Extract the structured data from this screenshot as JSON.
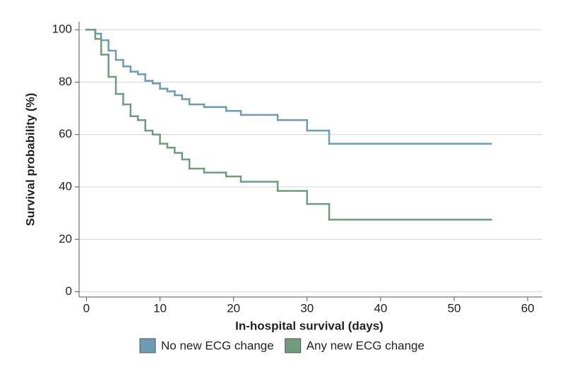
{
  "chart_data": {
    "type": "step",
    "xlabel": "In-hospital survival (days)",
    "ylabel": "Survival probability (%)",
    "xlim": [
      -1,
      62
    ],
    "ylim": [
      -2,
      103
    ],
    "xticks": [
      0,
      10,
      20,
      30,
      40,
      50,
      60
    ],
    "yticks": [
      0,
      20,
      40,
      60,
      80,
      100
    ],
    "grid": true,
    "legend": "bottom",
    "series": [
      {
        "name": "No new ECG change",
        "color": "#6b9db6",
        "x": [
          0,
          1.2,
          2,
          3,
          4,
          5,
          6,
          7,
          8,
          9,
          10,
          11,
          12,
          13,
          14,
          16,
          19,
          21,
          26,
          30,
          33,
          55
        ],
        "values": [
          100,
          98.5,
          96,
          92,
          88.5,
          86,
          84,
          83,
          80.5,
          79.5,
          77.5,
          76.5,
          75,
          73.5,
          71.5,
          70.5,
          69,
          67.5,
          65.5,
          61.5,
          56.5,
          56.5
        ]
      },
      {
        "name": "Any new ECG change",
        "color": "#6e9c7d",
        "x": [
          0,
          1.2,
          2,
          3,
          4,
          5,
          6,
          7,
          8,
          9,
          10,
          11,
          12,
          13,
          14,
          16,
          19,
          21,
          26,
          30,
          33,
          55
        ],
        "values": [
          100,
          96.5,
          90.5,
          82,
          75.5,
          71.5,
          67,
          65.5,
          61.5,
          60,
          56.5,
          55,
          53,
          50.5,
          47,
          45.5,
          44,
          42,
          38.5,
          33.5,
          27.5,
          27.5
        ]
      }
    ]
  }
}
